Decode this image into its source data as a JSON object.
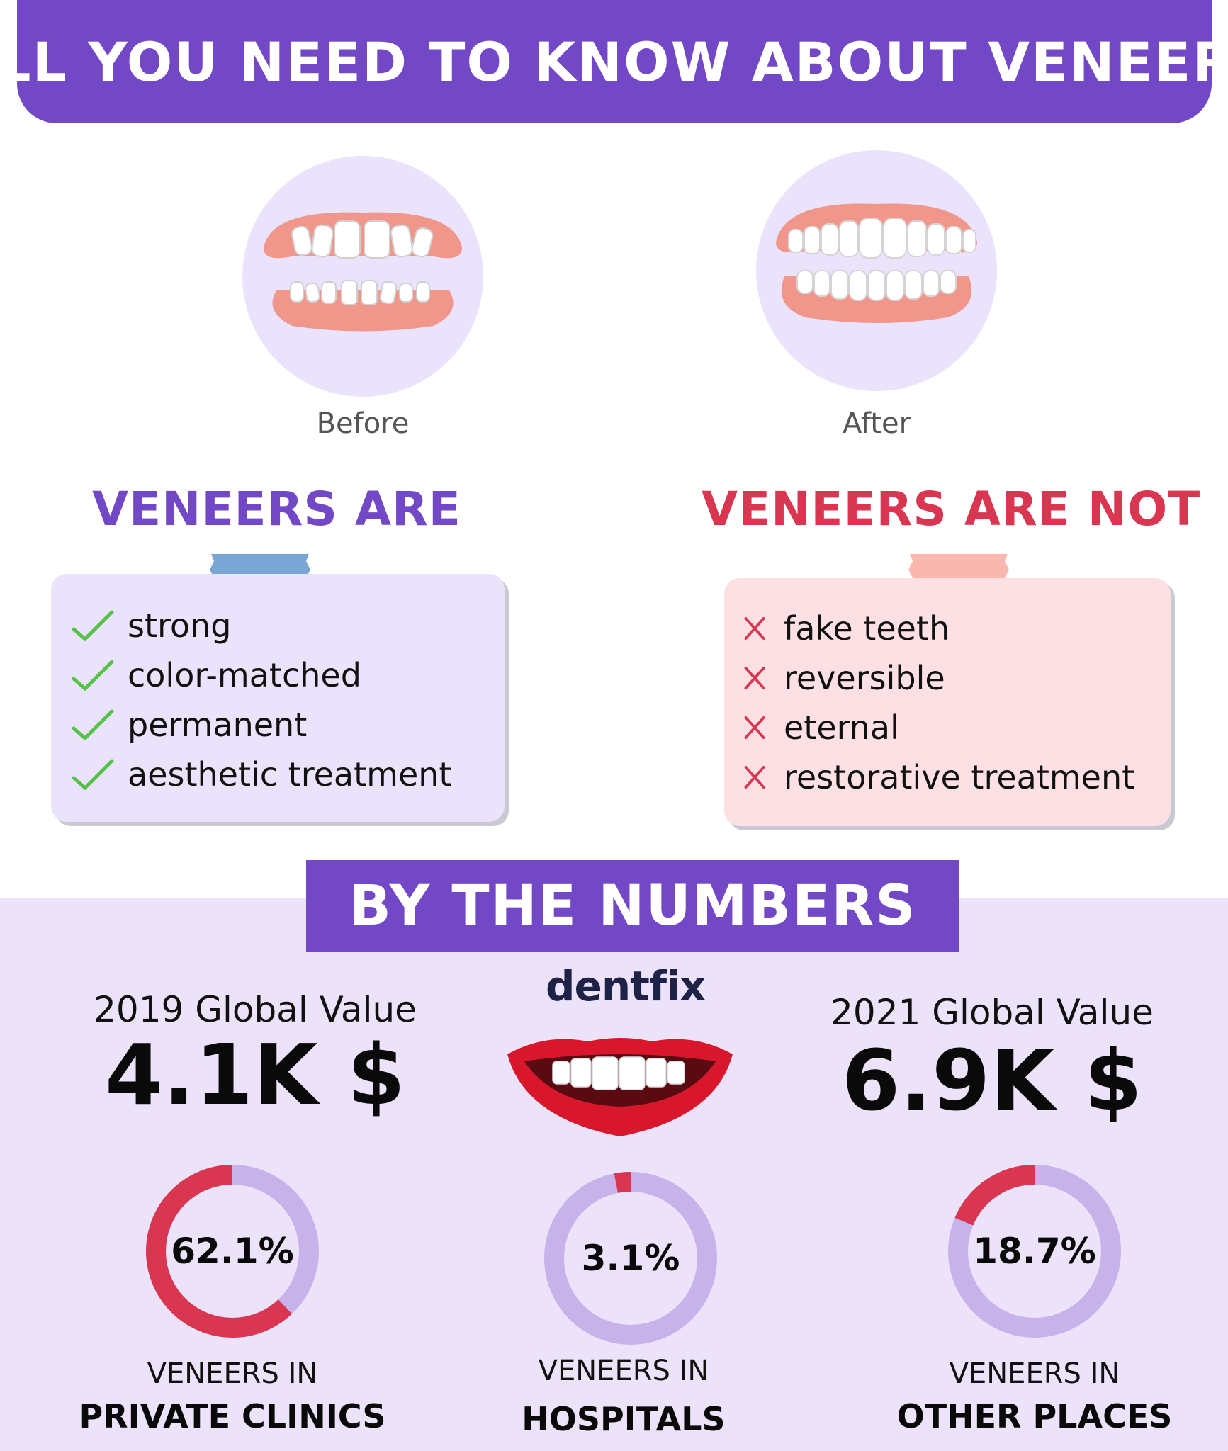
{
  "header": {
    "title": "ALL YOU NEED TO KNOW ABOUT VENEERS"
  },
  "comparison": {
    "before_label": "Before",
    "after_label": "After"
  },
  "veneers_are": {
    "title": "VENEERS ARE",
    "title_color": "#7348c6",
    "card_color": "#ebe2fb",
    "tape_color": "#7aa6d6",
    "check_color": "#55c34a",
    "items": [
      "strong",
      "color-matched",
      "permanent",
      "aesthetic treatment"
    ]
  },
  "veneers_are_not": {
    "title": "VENEERS ARE NOT",
    "title_color": "#d93651",
    "card_color": "#fde0e3",
    "tape_color": "#f9b7ae",
    "cross_color": "#d93651",
    "items": [
      "fake teeth",
      "reversible",
      "eternal",
      "restorative treatment"
    ]
  },
  "numbers": {
    "banner": "BY THE NUMBERS",
    "logo": "dentfix",
    "global_2019": {
      "label": "2019 Global Value",
      "value": "4.1K $"
    },
    "global_2021": {
      "label": "2021 Global Value",
      "value": "6.9K $"
    },
    "stats": [
      {
        "percent_text": "62.1%",
        "percent": 62.1,
        "line1": "VENEERS IN",
        "line2": "PRIVATE CLINICS"
      },
      {
        "percent_text": "3.1%",
        "percent": 3.1,
        "line1": "VENEERS IN",
        "line2": "HOSPITALS"
      },
      {
        "percent_text": "18.7%",
        "percent": 18.7,
        "line1": "VENEERS IN",
        "line2": "OTHER PLACES"
      }
    ],
    "donut_fill_color": "#d93651",
    "donut_track_color": "#c7b3ea"
  }
}
